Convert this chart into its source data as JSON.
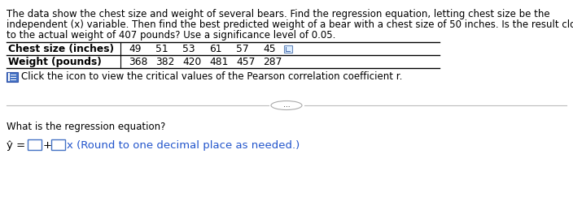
{
  "bg_color": "#ffffff",
  "para_line1": "The data show the chest size and weight of several bears. Find the regression equation, letting chest size be the",
  "para_line2": "independent (x) variable. Then find the best predicted weight of a bear with a chest size of 50 inches. Is the result close",
  "para_line3": "to the actual weight of 407 pounds? Use a significance level of 0.05.",
  "table_header_label": "Chest size (inches)",
  "table_header_nums": [
    "49",
    "51",
    "53",
    "61",
    "57",
    "45"
  ],
  "table_row2_label": "Weight (pounds)",
  "table_row2_nums": [
    "368",
    "382",
    "420",
    "481",
    "457",
    "287"
  ],
  "icon_text": "Click the icon to view the critical values of the Pearson correlation coefficient r.",
  "divider_text": "...",
  "question_text": "What is the regression equation?",
  "eq_yhat": "ŷ =",
  "eq_plus": "+",
  "eq_suffix": "x (Round to one decimal place as needed.)",
  "font_size_para": 8.5,
  "font_size_table": 8.8,
  "font_size_eq": 9.5,
  "text_color": "#000000",
  "blue_color": "#2255cc",
  "box_edge_color": "#4472c4"
}
